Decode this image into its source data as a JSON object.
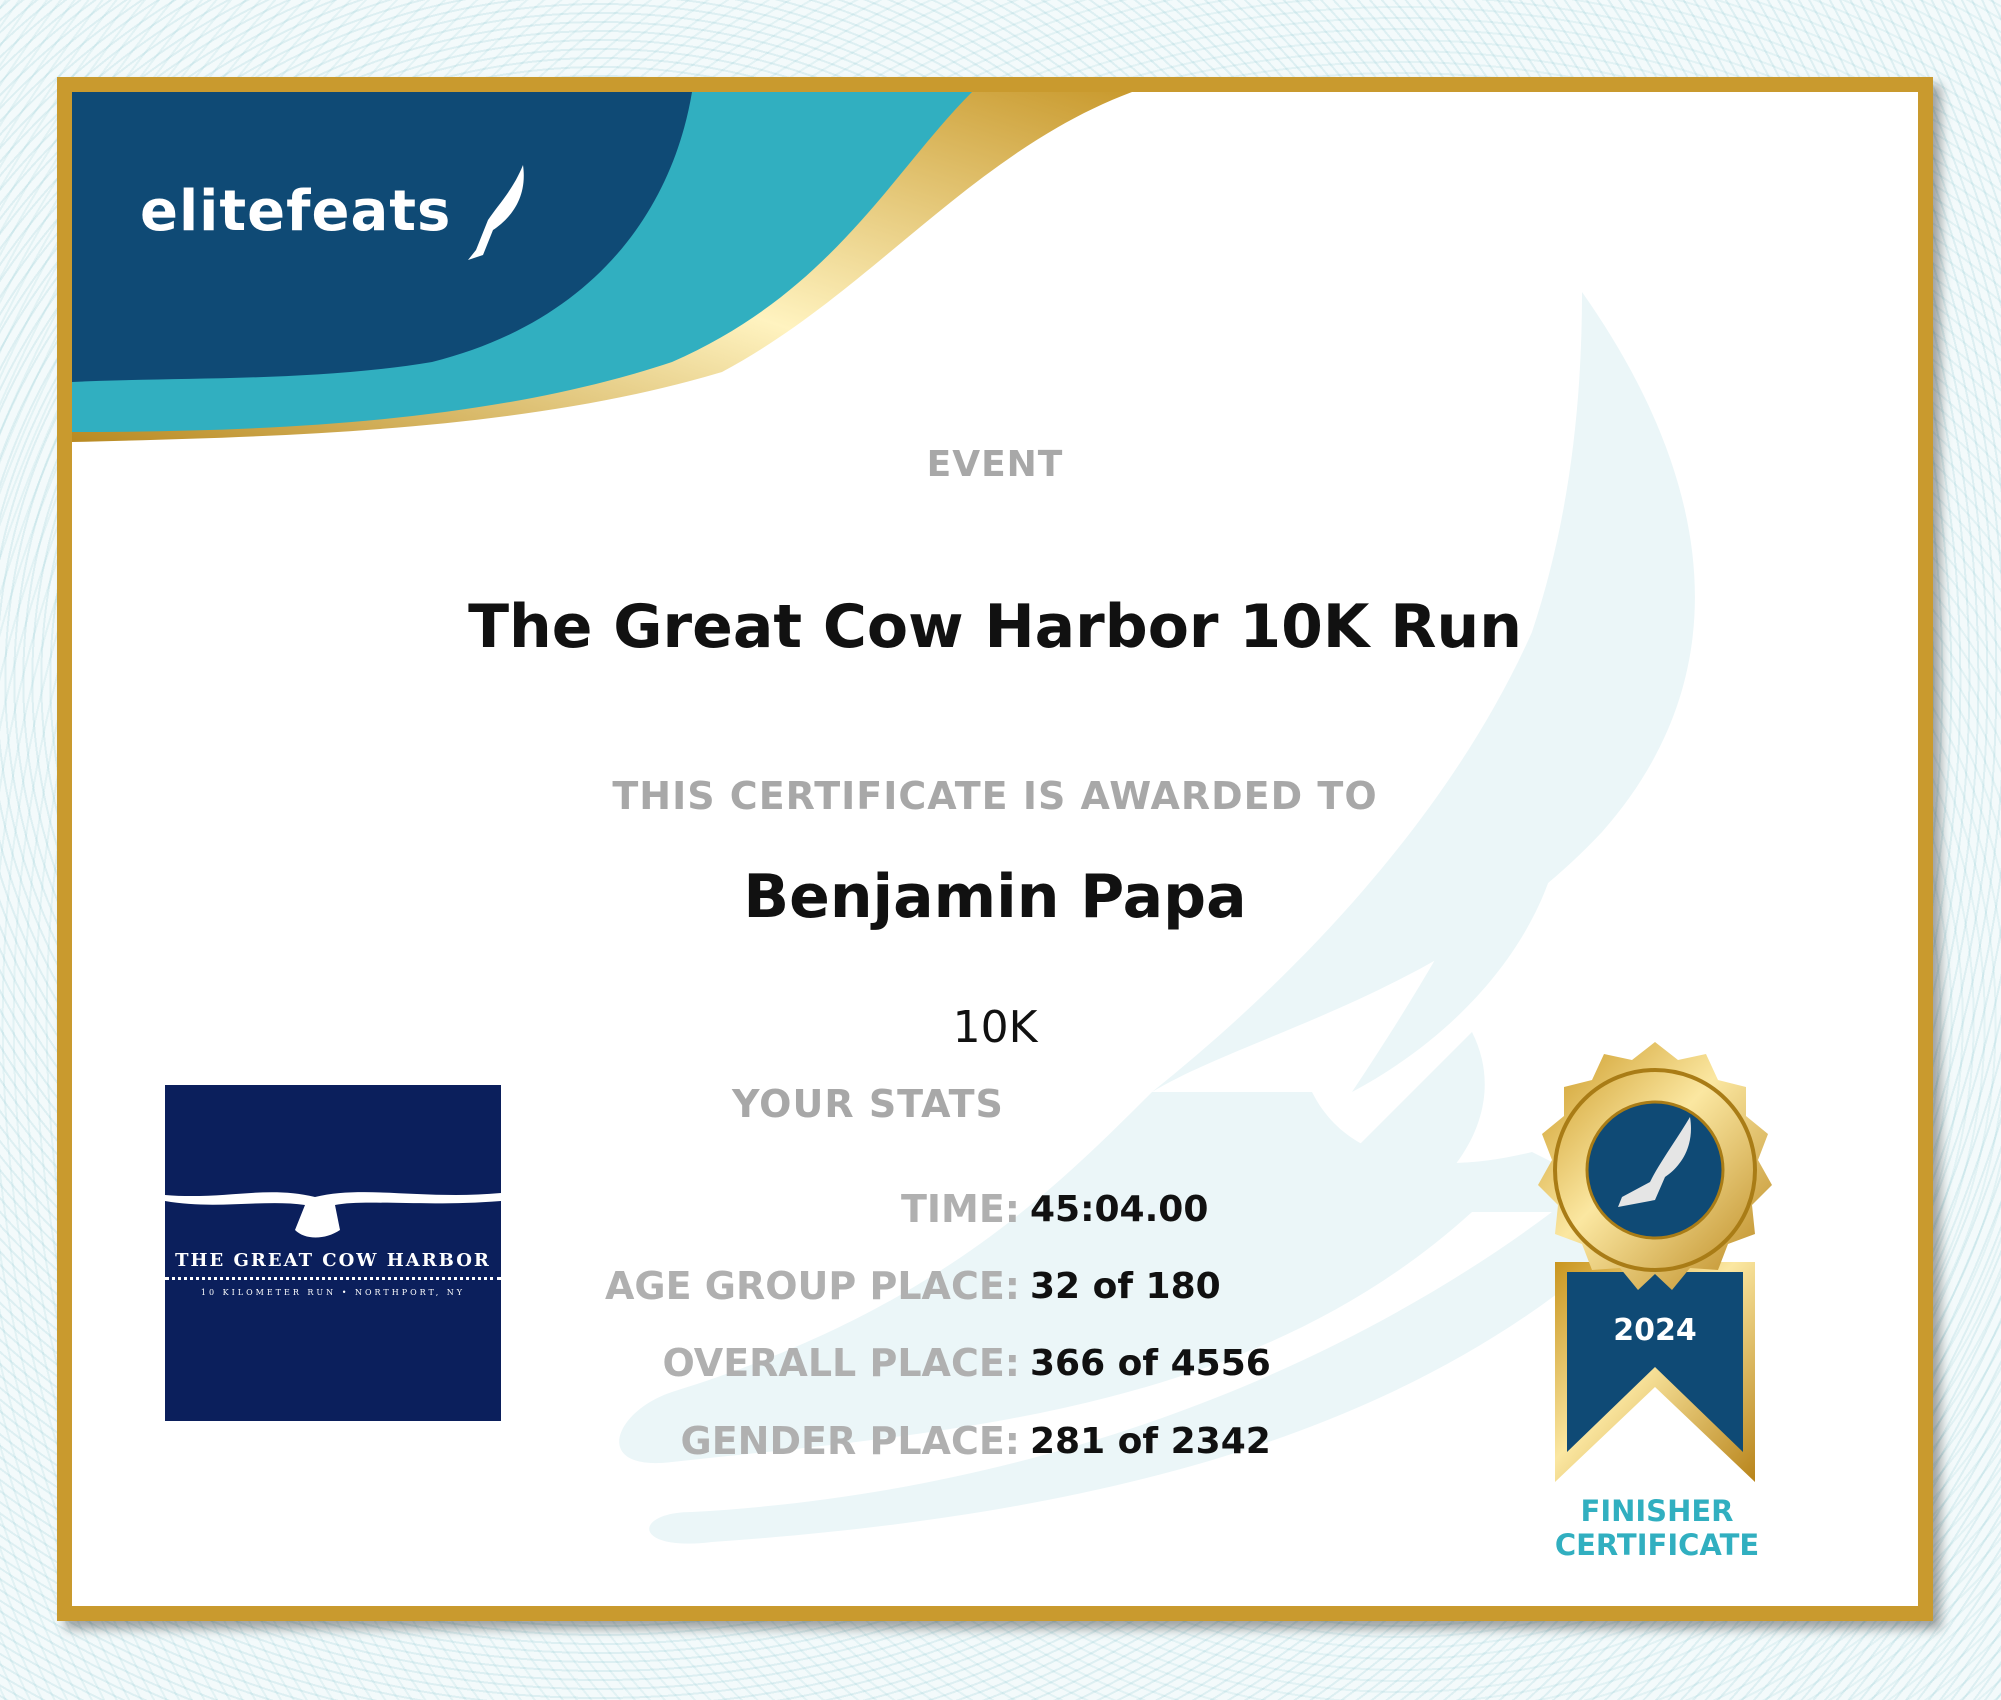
{
  "brand": {
    "name": "elitefeats",
    "colors": {
      "navy": "#0f4a75",
      "teal": "#31afc0",
      "gold": "#c99a2e"
    }
  },
  "event": {
    "label": "EVENT",
    "name": "The Great Cow Harbor 10K Run"
  },
  "award": {
    "label": "THIS CERTIFICATE IS AWARDED TO",
    "name": "Benjamin Papa",
    "distance": "10K"
  },
  "stats": {
    "label": "YOUR STATS",
    "rows": [
      {
        "key": "TIME:",
        "value": "45:04.00"
      },
      {
        "key": "AGE GROUP PLACE:",
        "value": "32 of 180"
      },
      {
        "key": "OVERALL PLACE:",
        "value": "366 of 4556"
      },
      {
        "key": "GENDER PLACE:",
        "value": "281 of 2342"
      }
    ]
  },
  "race_logo": {
    "title": "THE GREAT COW HARBOR",
    "subtitle": "10 KILOMETER RUN • NORTHPORT, NY"
  },
  "badge": {
    "year": "2024",
    "line1": "FINISHER",
    "line2": "CERTIFICATE",
    "icon": "winged-foot-icon"
  }
}
